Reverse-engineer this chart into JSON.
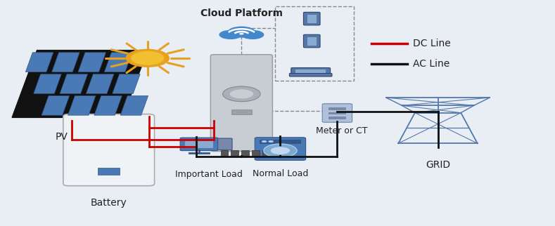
{
  "bg_color": "#e8eef4",
  "labels": {
    "pv": "PV",
    "battery": "Battery",
    "important_load": "Important Load",
    "normal_load": "Normal Load",
    "meter": "Meter or CT",
    "grid": "GRID",
    "cloud": "Cloud Platform",
    "dc_line": "DC Line",
    "ac_line": "AC Line"
  },
  "colors": {
    "bg": "#e8eef4",
    "dc_line": "#cc0000",
    "ac_line": "#111111",
    "dashed": "#888888",
    "solar_orange": "#e8a020",
    "solar_yellow": "#f0c030",
    "panel_cell": "#4a7ab5",
    "inverter_body": "#c8cdd4",
    "battery_blue": "#4a7ab5",
    "load_blue": "#4a7ab5",
    "grid_blue": "#5577aa",
    "meter_blue": "#6688aa",
    "cloud_blue": "#4488cc",
    "text_dark": "#222222"
  }
}
